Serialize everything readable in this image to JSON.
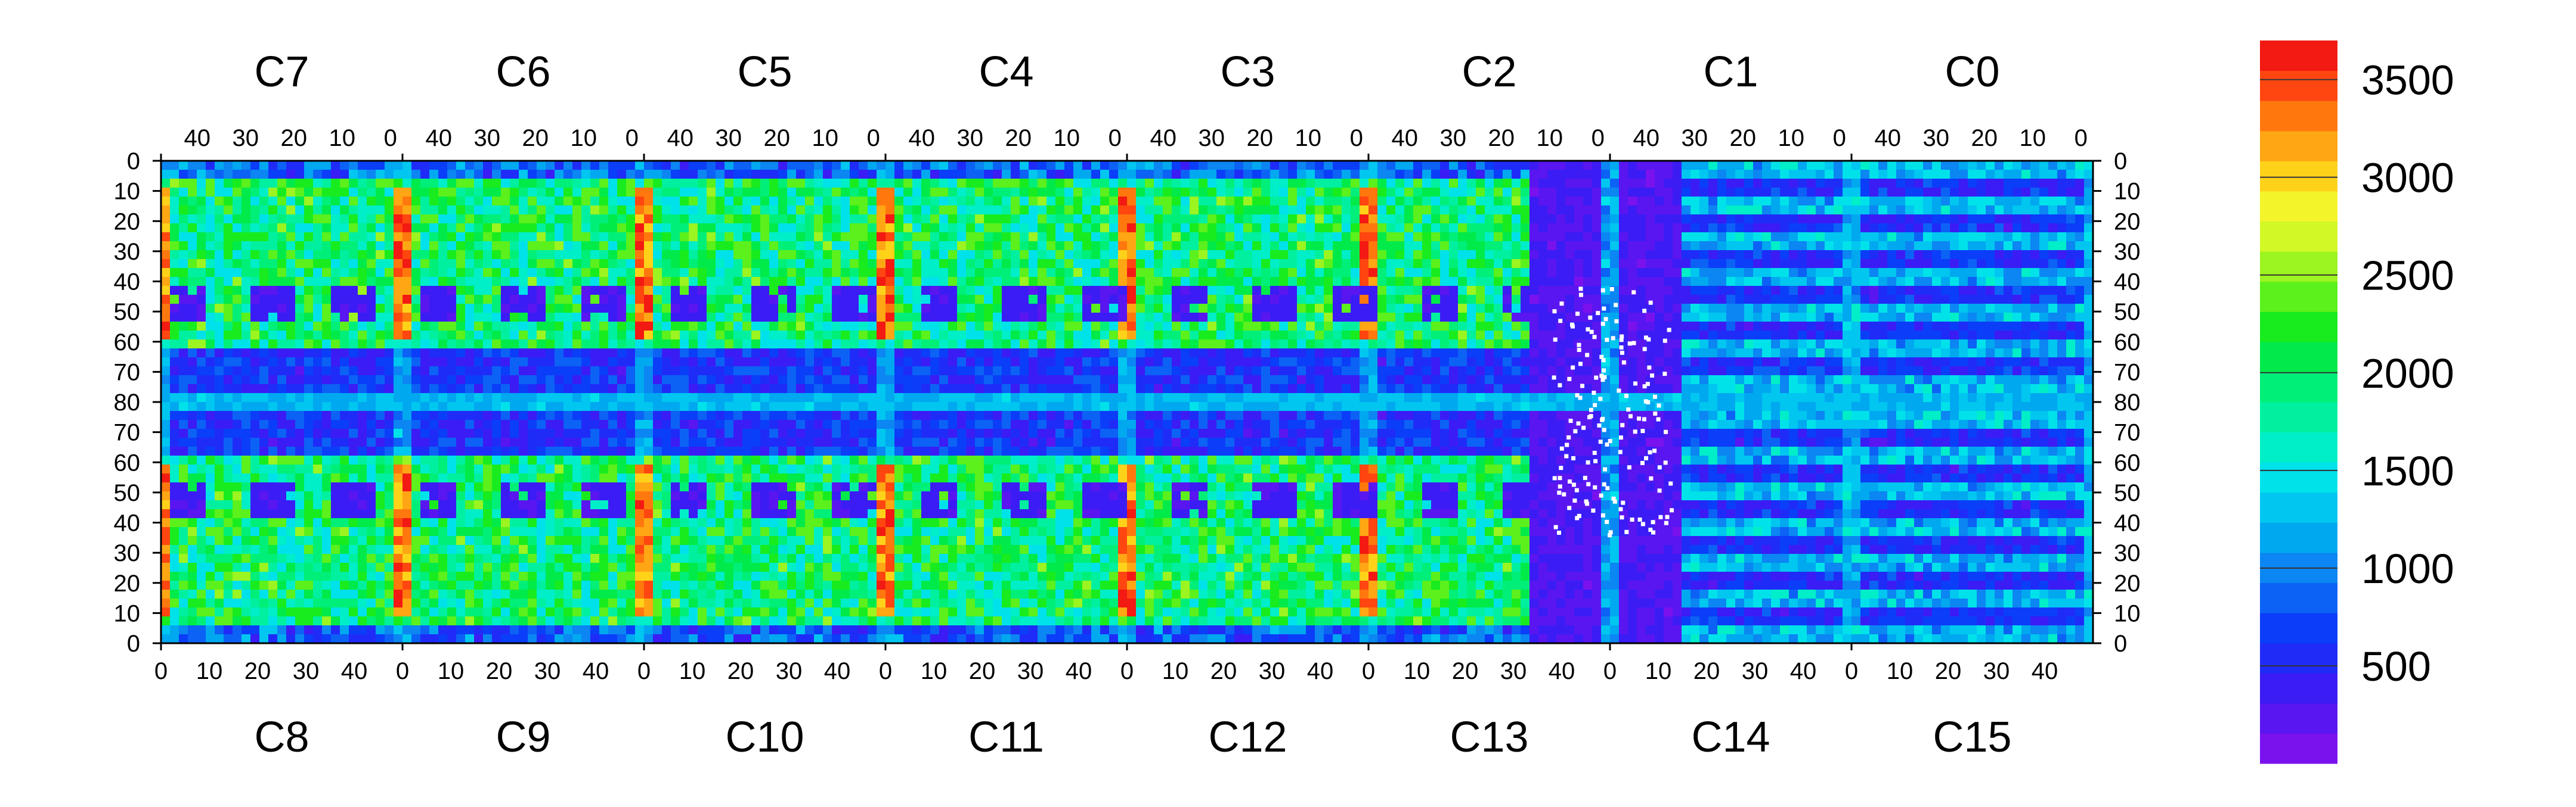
{
  "chart_data": {
    "type": "heatmap",
    "top_chip_labels": [
      "C7",
      "C6",
      "C5",
      "C4",
      "C3",
      "C2",
      "C1",
      "C0"
    ],
    "bottom_chip_labels": [
      "C8",
      "C9",
      "C10",
      "C11",
      "C12",
      "C13",
      "C14",
      "C15"
    ],
    "x_tick_labels_top": [
      "40",
      "30",
      "20",
      "10",
      "0"
    ],
    "x_tick_labels_bottom": [
      "0",
      "10",
      "20",
      "30",
      "40"
    ],
    "y_tick_labels": [
      "0",
      "10",
      "20",
      "30",
      "40",
      "50",
      "60",
      "70",
      "80",
      "70",
      "60",
      "50",
      "40",
      "30",
      "20",
      "10",
      "0"
    ],
    "colorbar": {
      "min": 0,
      "max": 3700,
      "ticks": [
        "500",
        "1000",
        "1500",
        "2000",
        "2500",
        "3000",
        "3500"
      ],
      "tick_values": [
        500,
        1000,
        1500,
        2000,
        2500,
        3000,
        3500
      ],
      "colors": [
        "#7a12ee",
        "#5a16f0",
        "#3b1cf5",
        "#1f2cf8",
        "#0b3ef8",
        "#0c62f5",
        "#0b86f2",
        "#00a8f0",
        "#00c6f0",
        "#00e2ea",
        "#00eec8",
        "#00f0a0",
        "#00ef78",
        "#00ea4a",
        "#18ec1e",
        "#5cf01c",
        "#9cf420",
        "#d2f826",
        "#f4f42a",
        "#ffd21a",
        "#ffa614",
        "#ff780e",
        "#ff4610",
        "#f21a12"
      ]
    },
    "grid": {
      "columns": 8,
      "rows": 2,
      "x_range_per_chip": [
        0,
        52
      ],
      "y_range_per_row": [
        0,
        80
      ]
    },
    "hotspots": {
      "red_vertical_strips_at_chip_edge": "x = 0 of each chip boundary, y ≈ 10–60 (top and bottom rows)",
      "low_occupancy_region": "C13/C14 boundary (purple, with isolated white cells)"
    }
  }
}
